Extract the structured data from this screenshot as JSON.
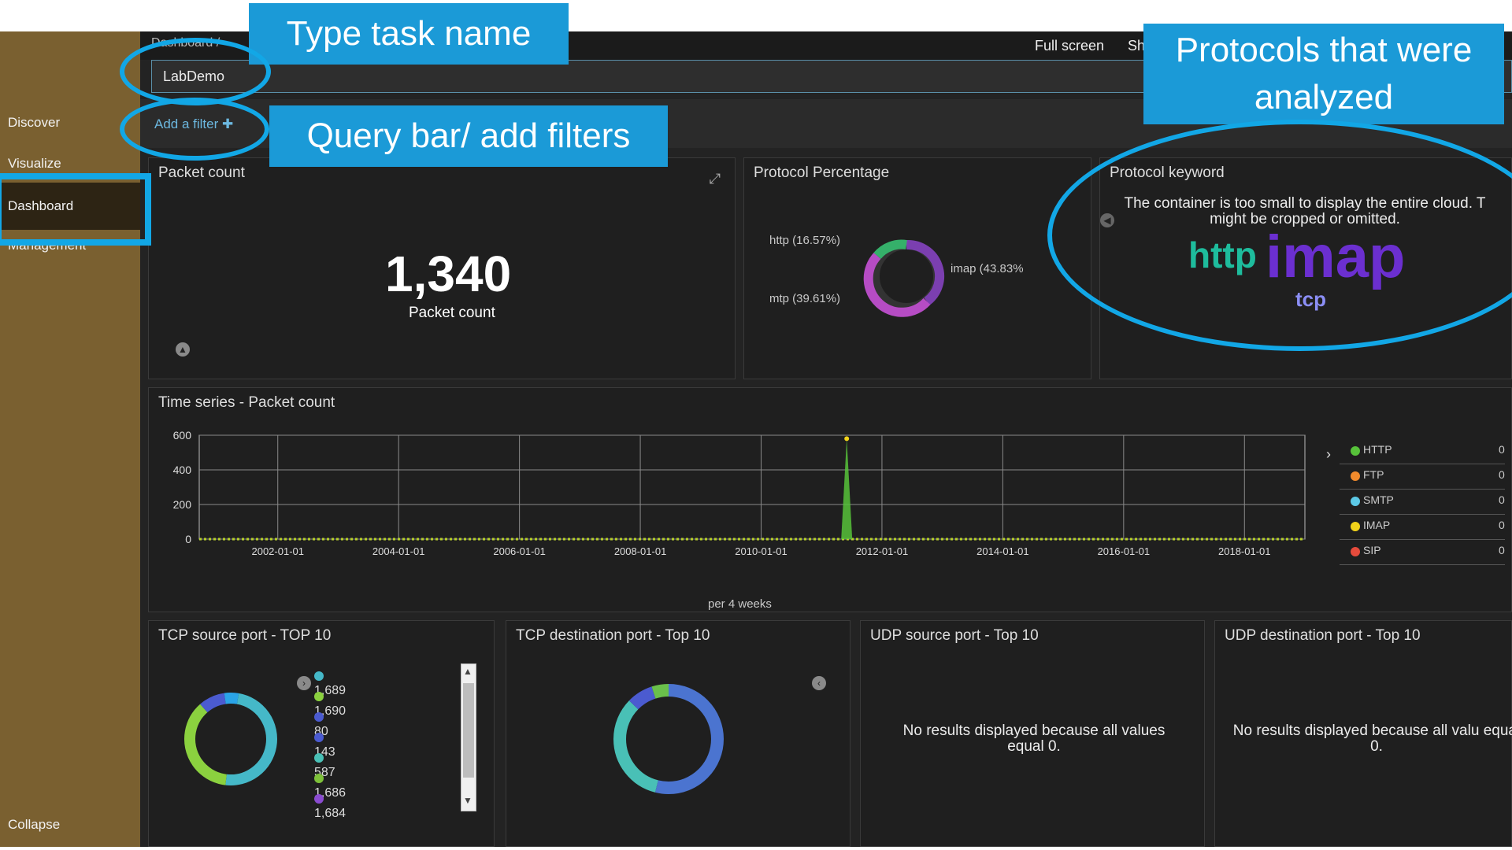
{
  "sidebar": {
    "items": [
      {
        "label": "Discover"
      },
      {
        "label": "Visualize"
      },
      {
        "label": "Dashboard"
      },
      {
        "label": "Management"
      }
    ],
    "collapse": "Collapse"
  },
  "topbar": {
    "crumb": "Dashboard /",
    "actions": [
      "Full screen",
      "Sh"
    ]
  },
  "query": {
    "value": "LabDemo"
  },
  "filter": {
    "label": "Add a filter ✚"
  },
  "panels": {
    "packet_count": {
      "title": "Packet count",
      "value": "1,340",
      "label": "Packet count"
    },
    "protocol_percentage": {
      "title": "Protocol Percentage",
      "labels": [
        "http (16.57%)",
        "imap (43.83%",
        "mtp (39.61%)"
      ]
    },
    "protocol_keyword": {
      "title": "Protocol keyword",
      "message": "The container is too small to display the entire cloud. T might be cropped or omitted.",
      "words": [
        "http",
        "imap",
        "tcp"
      ]
    },
    "time_series": {
      "title": "Time series - Packet count",
      "x_label": "per 4 weeks",
      "legend": [
        {
          "name": "HTTP",
          "color": "#57c23a",
          "value": "0"
        },
        {
          "name": "FTP",
          "color": "#f08a2c",
          "value": "0"
        },
        {
          "name": "SMTP",
          "color": "#5cc9e6",
          "value": "0"
        },
        {
          "name": "IMAP",
          "color": "#f2d31a",
          "value": "0"
        },
        {
          "name": "SIP",
          "color": "#e64b3c",
          "value": "0"
        }
      ]
    },
    "tcp_src": {
      "title": "TCP source port - TOP 10",
      "items": [
        {
          "label": "1,689",
          "color": "#45b8c8"
        },
        {
          "label": "1,690",
          "color": "#8bd13f"
        },
        {
          "label": "80",
          "color": "#4b5bd0"
        },
        {
          "label": "143",
          "color": "#4b5bd0"
        },
        {
          "label": "587",
          "color": "#49c0b6"
        },
        {
          "label": "1,686",
          "color": "#7ec13a"
        },
        {
          "label": "1,684",
          "color": "#8a4bd0"
        }
      ]
    },
    "tcp_dst": {
      "title": "TCP destination port - Top 10"
    },
    "udp_src": {
      "title": "UDP source port - Top 10",
      "message": "No results displayed because all values equal 0."
    },
    "udp_dst": {
      "title": "UDP destination port - Top 10",
      "message": "No results displayed because all valu equal 0."
    }
  },
  "callouts": {
    "task": "Type task name",
    "query": "Query bar/ add filters",
    "protocols": "Protocols that were analyzed"
  },
  "chart_data": {
    "type": "area",
    "x": [
      "2002-01-01",
      "2004-01-01",
      "2006-01-01",
      "2008-01-01",
      "2010-01-01",
      "2012-01-01",
      "2014-01-01",
      "2016-01-01",
      "2018-01-01"
    ],
    "ylim": [
      0,
      600
    ],
    "yticks": [
      0,
      200,
      400,
      600
    ],
    "series": [
      {
        "name": "HTTP",
        "color": "#57c23a",
        "spike_at": "2011-06-01",
        "peak": 580
      }
    ]
  }
}
